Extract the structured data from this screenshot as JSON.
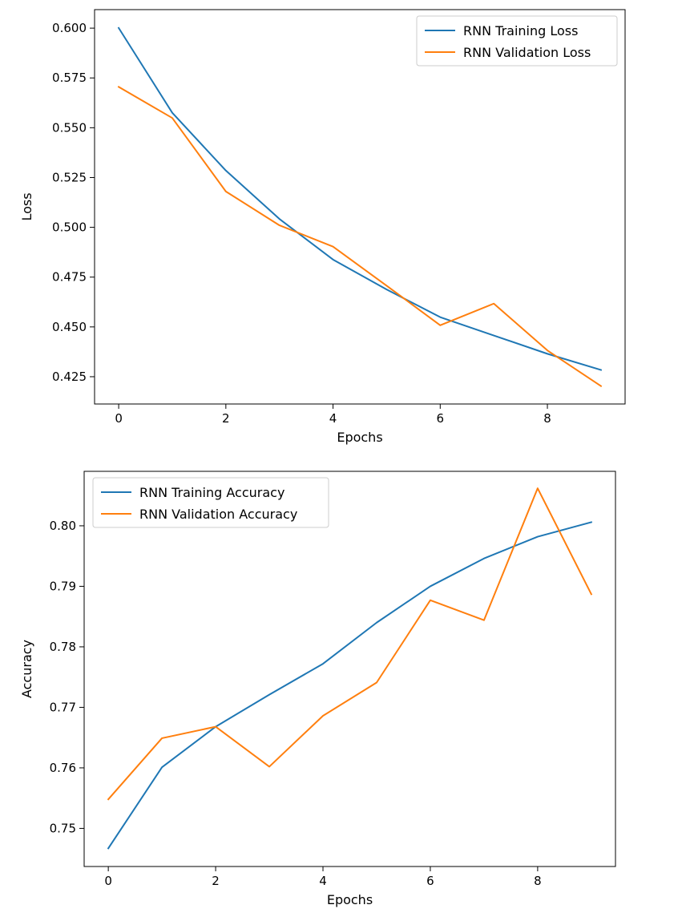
{
  "chart_data": [
    {
      "type": "line",
      "title": "",
      "xlabel": "Epochs",
      "ylabel": "Loss",
      "xlim": [
        -0.45,
        9.45
      ],
      "ylim": [
        0.4113,
        0.6093
      ],
      "xticks": [
        0,
        2,
        4,
        6,
        8
      ],
      "xtick_labels": [
        "0",
        "2",
        "4",
        "6",
        "8"
      ],
      "yticks": [
        0.425,
        0.45,
        0.475,
        0.5,
        0.525,
        0.55,
        0.575,
        0.6
      ],
      "ytick_labels": [
        "0.425",
        "0.450",
        "0.475",
        "0.500",
        "0.525",
        "0.550",
        "0.575",
        "0.600"
      ],
      "grid": false,
      "legend_position": "upper right",
      "x": [
        0,
        1,
        2,
        3,
        4,
        5,
        6,
        7,
        8,
        9
      ],
      "series": [
        {
          "name": "RNN Training Loss",
          "color": "#1f77b4",
          "values": [
            0.6001,
            0.5575,
            0.5285,
            0.5042,
            0.4838,
            0.4688,
            0.4549,
            0.4457,
            0.4365,
            0.4284
          ]
        },
        {
          "name": "RNN Validation Loss",
          "color": "#ff7f0e",
          "values": [
            0.5705,
            0.5549,
            0.518,
            0.501,
            0.4903,
            0.4707,
            0.4508,
            0.4617,
            0.4382,
            0.4203
          ]
        }
      ]
    },
    {
      "type": "line",
      "title": "",
      "xlabel": "Epochs",
      "ylabel": "Accuracy",
      "xlim": [
        -0.45,
        9.45
      ],
      "ylim": [
        0.7437,
        0.809
      ],
      "xticks": [
        0,
        2,
        4,
        6,
        8
      ],
      "xtick_labels": [
        "0",
        "2",
        "4",
        "6",
        "8"
      ],
      "yticks": [
        0.75,
        0.76,
        0.77,
        0.78,
        0.79,
        0.8
      ],
      "ytick_labels": [
        "0.75",
        "0.76",
        "0.77",
        "0.78",
        "0.79",
        "0.80"
      ],
      "grid": false,
      "legend_position": "upper left",
      "x": [
        0,
        1,
        2,
        3,
        4,
        5,
        6,
        7,
        8,
        9
      ],
      "series": [
        {
          "name": "RNN Training Accuracy",
          "color": "#1f77b4",
          "values": [
            0.7467,
            0.7601,
            0.7668,
            0.7721,
            0.7772,
            0.784,
            0.79,
            0.7946,
            0.7982,
            0.8006
          ]
        },
        {
          "name": "RNN Validation Accuracy",
          "color": "#ff7f0e",
          "values": [
            0.7548,
            0.7649,
            0.7668,
            0.7602,
            0.7686,
            0.7741,
            0.7877,
            0.7844,
            0.8062,
            0.7887
          ]
        }
      ]
    }
  ]
}
